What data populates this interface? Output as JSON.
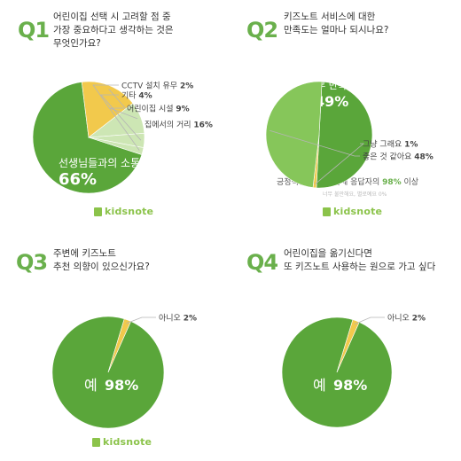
{
  "colors": {
    "green_dark": "#5aa63a",
    "green_mid": "#86c65a",
    "green_light": "#cde6b4",
    "yellow": "#f2c94c",
    "brand": "#8bc34a",
    "label": "#444444",
    "leader": "#b5b5b5"
  },
  "brand": {
    "name": "kidsnote"
  },
  "panels": [
    {
      "qnum": "Q1",
      "title": "어린이집 선택 시 고려할 점 중\n가장 중요하다고 생각하는 것은\n무엇인가요?"
    },
    {
      "qnum": "Q2",
      "title": "키즈노트 서비스에 대한\n만족도는 얼마나 되시나요?",
      "note": {
        "prefix": "긍정적인 반응이 전체 응답자의",
        "highlight": "98%",
        "suffix": "이상"
      },
      "subnote": "너무 불만해요, 별로예요 0%"
    },
    {
      "qnum": "Q3",
      "title": "주변에 키즈노트\n추천 의향이 있으신가요?"
    },
    {
      "qnum": "Q4",
      "title": "어린이집을 옮기신다면\n또 키즈노트 사용하는 원으로 가고 싶다"
    }
  ],
  "chart_data": [
    {
      "type": "pie",
      "title": "",
      "slices": [
        {
          "label": "선생님들과의 소통",
          "value": 66,
          "display": "66%"
        },
        {
          "label": "집에서의 거리",
          "value": 16,
          "display": "16%"
        },
        {
          "label": "어린이집 시설",
          "value": 9,
          "display": "9%"
        },
        {
          "label": "기타",
          "value": 4,
          "display": "4%"
        },
        {
          "label": "CCTV 설치 유무",
          "value": 2,
          "display": "2%"
        }
      ]
    },
    {
      "type": "pie",
      "title": "",
      "slices": [
        {
          "label": "너무 만족해요",
          "value": 49,
          "display": "49%"
        },
        {
          "label": "그냥 그래요",
          "value": 1,
          "display": "1%"
        },
        {
          "label": "좋은 것 같아요",
          "value": 48,
          "display": "48%"
        }
      ]
    },
    {
      "type": "pie",
      "title": "",
      "slices": [
        {
          "label": "예",
          "value": 98,
          "display": "98%"
        },
        {
          "label": "아니오",
          "value": 2,
          "display": "2%"
        }
      ]
    },
    {
      "type": "pie",
      "title": "",
      "slices": [
        {
          "label": "예",
          "value": 98,
          "display": "98%"
        },
        {
          "label": "아니오",
          "value": 2,
          "display": "2%"
        }
      ]
    }
  ]
}
